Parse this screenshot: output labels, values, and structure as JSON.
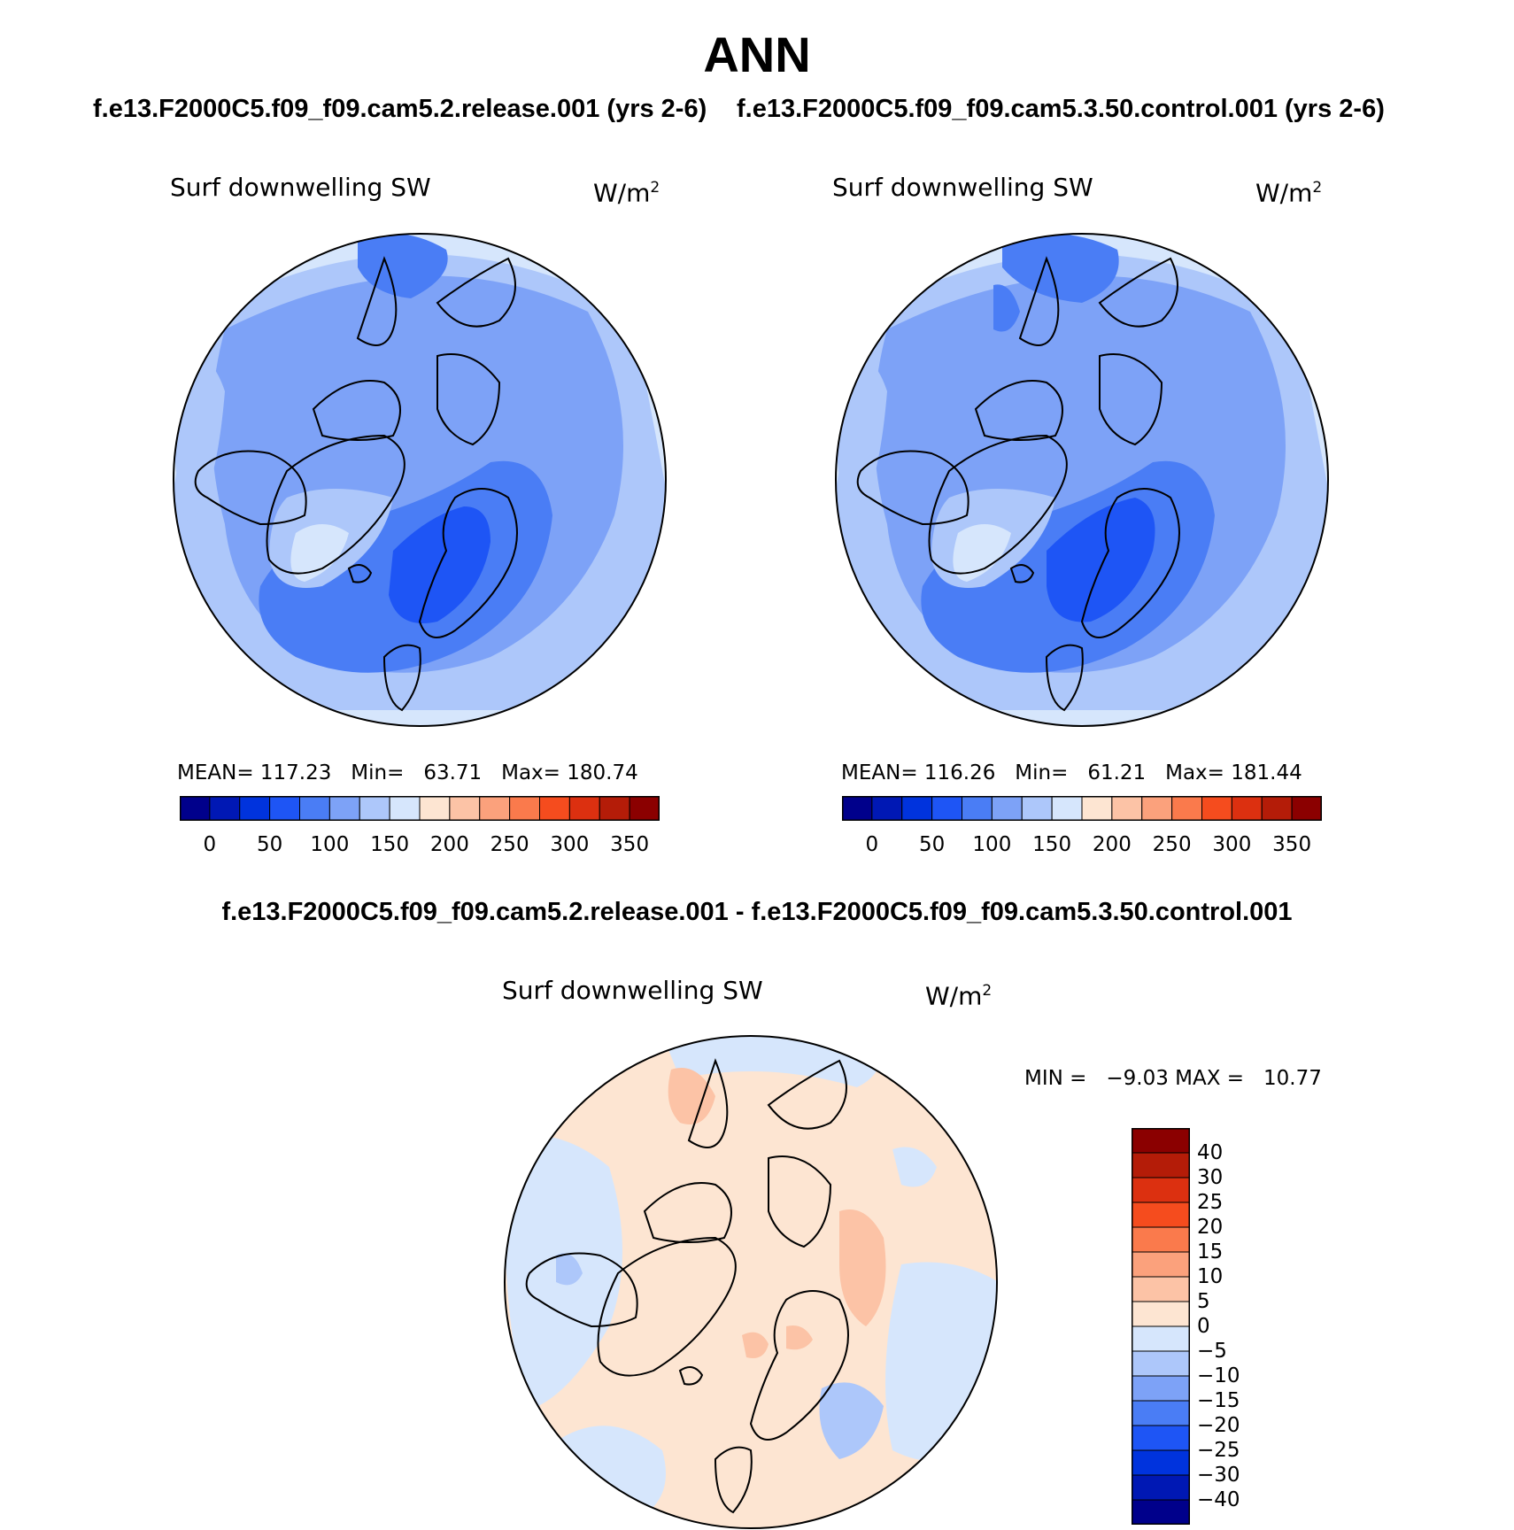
{
  "figure": {
    "title": "ANN",
    "case1_title": "f.e13.F2000C5.f09_f09.cam5.2.release.001 (yrs 2-6)",
    "case2_title": "f.e13.F2000C5.f09_f09.cam5.3.50.control.001 (yrs 2-6)",
    "diff_title": "f.e13.F2000C5.f09_f09.cam5.2.release.001 - f.e13.F2000C5.f09_f09.cam5.3.50.control.001"
  },
  "panels": [
    {
      "variable": "Surf downwelling SW",
      "units": "W/m",
      "units_exp": "2",
      "stats": "MEAN= 117.23   Min=   63.71   Max= 180.74"
    },
    {
      "variable": "Surf downwelling SW",
      "units": "W/m",
      "units_exp": "2",
      "stats": "MEAN= 116.26   Min=   61.21   Max= 181.44"
    },
    {
      "variable": "Surf downwelling SW",
      "units": "W/m",
      "units_exp": "2",
      "stats": "MIN =   −9.03 MAX =   10.77"
    }
  ],
  "colorbar_abs": {
    "colors": [
      "#00008b",
      "#0018b4",
      "#0033dd",
      "#1e55f5",
      "#4a7df5",
      "#7da2f7",
      "#adc7fa",
      "#d6e6fc",
      "#fde5d2",
      "#fcc3a6",
      "#fba17c",
      "#fa7a4c",
      "#f54c1e",
      "#dc3010",
      "#b41c08",
      "#8b0000"
    ],
    "labels": [
      "0",
      "50",
      "100",
      "150",
      "200",
      "250",
      "300",
      "350"
    ]
  },
  "colorbar_diff": {
    "colors": [
      "#8b0000",
      "#b41c08",
      "#dc3010",
      "#f54c1e",
      "#fa7a4c",
      "#fba17c",
      "#fcc3a6",
      "#fde5d2",
      "#d6e6fc",
      "#adc7fa",
      "#7da2f7",
      "#4a7df5",
      "#1e55f5",
      "#0033dd",
      "#0018b4",
      "#00008b"
    ],
    "labels": [
      "40",
      "30",
      "25",
      "20",
      "15",
      "10",
      "5",
      "0",
      "−5",
      "−10",
      "−15",
      "−20",
      "−25",
      "−30",
      "−40"
    ]
  },
  "map_colors": {
    "c50_100": "#4a7df5",
    "c100_125": "#7da2f7",
    "c125_150": "#adc7fa",
    "c150_175": "#d6e6fc",
    "c175_200": "#fde5d2",
    "c75_100": "#1e55f5",
    "d0_5": "#fde5d2",
    "d5_10": "#fcc3a6",
    "dm5_0": "#d6e6fc",
    "dm10_m5": "#adc7fa"
  },
  "chart_data": {
    "type": "heatmap",
    "title": "ANN",
    "panels": [
      {
        "variable": "Surf downwelling SW",
        "units": "W/m2",
        "mean": 117.23,
        "min": 63.71,
        "max": 180.74
      },
      {
        "variable": "Surf downwelling SW",
        "units": "W/m2",
        "mean": 116.26,
        "min": 61.21,
        "max": 181.44
      },
      {
        "variable": "Surf downwelling SW",
        "units": "W/m2",
        "min": -9.03,
        "max": 10.77
      }
    ],
    "abs_levels": [
      0,
      50,
      100,
      150,
      200,
      250,
      300,
      350
    ],
    "diff_levels": [
      -40,
      -30,
      -25,
      -20,
      -15,
      -10,
      -5,
      0,
      5,
      10,
      15,
      20,
      25,
      30,
      40
    ]
  }
}
